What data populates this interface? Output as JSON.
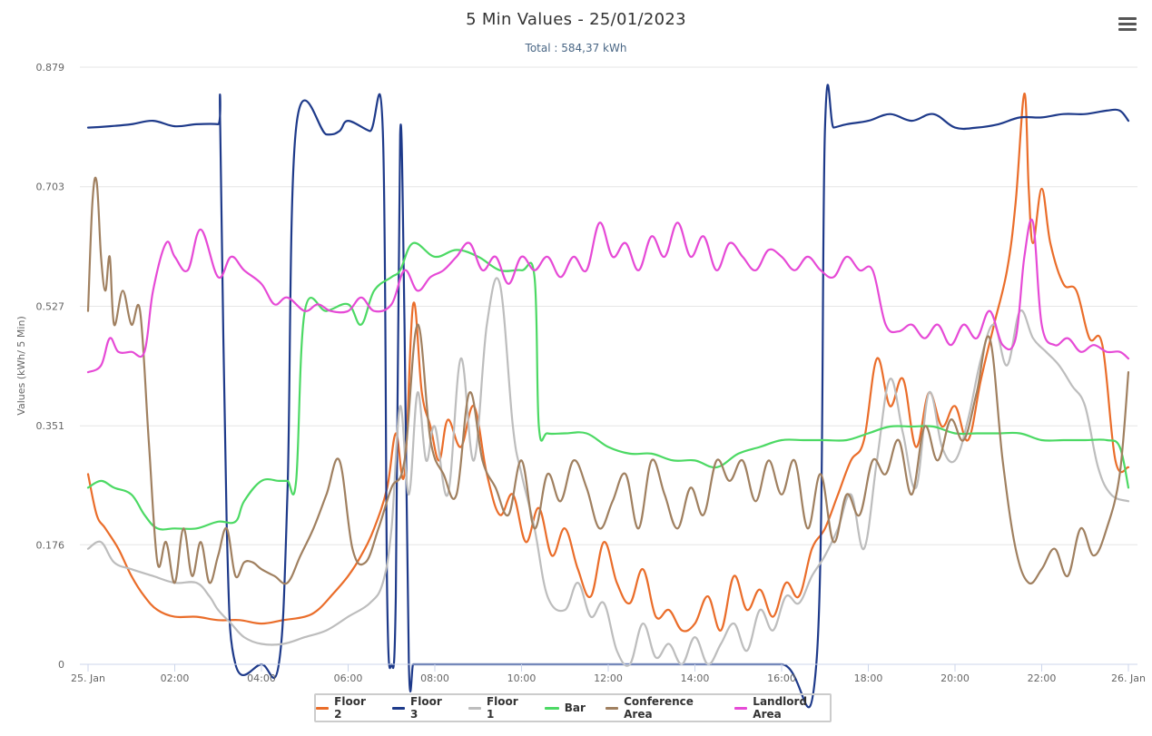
{
  "menu": {
    "icon": "hamburger-menu-icon"
  },
  "chart_data": {
    "type": "line",
    "title": "5 Min Values - 25/01/2023",
    "subtitle": "Total : 584,37 kWh",
    "xlabel": "",
    "ylabel": "Values (kWh/ 5 Min)",
    "x_unit": "hours since 25 Jan 00:00",
    "xlim": [
      0,
      24
    ],
    "ylim": [
      0,
      0.879
    ],
    "y_ticks": [
      "0",
      "0.176",
      "0.351",
      "0.527",
      "0.703",
      "0.879"
    ],
    "y_tick_values": [
      0,
      0.176,
      0.351,
      0.527,
      0.703,
      0.879
    ],
    "x_ticks": [
      "25. Jan",
      "02:00",
      "04:00",
      "06:00",
      "08:00",
      "10:00",
      "12:00",
      "14:00",
      "16:00",
      "18:00",
      "20:00",
      "22:00",
      "26. Jan"
    ],
    "x_tick_values": [
      0,
      2,
      4,
      6,
      8,
      10,
      12,
      14,
      16,
      18,
      20,
      22,
      24
    ],
    "grid": true,
    "legend": "bottom-center",
    "series": [
      {
        "name": "Floor 2",
        "color": "#ea6d2a",
        "x": [
          0,
          0.2,
          0.4,
          0.7,
          1.0,
          1.3,
          1.6,
          2.0,
          2.5,
          3.0,
          3.5,
          4.0,
          4.5,
          5.0,
          5.3,
          5.6,
          6.0,
          6.3,
          6.6,
          6.9,
          7.1,
          7.3,
          7.5,
          7.7,
          7.9,
          8.1,
          8.3,
          8.6,
          8.9,
          9.2,
          9.5,
          9.8,
          10.1,
          10.4,
          10.7,
          11.0,
          11.3,
          11.6,
          11.9,
          12.2,
          12.5,
          12.8,
          13.1,
          13.4,
          13.7,
          14.0,
          14.3,
          14.6,
          14.9,
          15.2,
          15.5,
          15.8,
          16.1,
          16.4,
          16.7,
          17.0,
          17.3,
          17.6,
          17.9,
          18.2,
          18.5,
          18.8,
          19.1,
          19.4,
          19.7,
          20.0,
          20.3,
          20.6,
          20.9,
          21.2,
          21.4,
          21.6,
          21.7,
          21.8,
          22.0,
          22.2,
          22.5,
          22.8,
          23.1,
          23.4,
          23.7,
          24.0
        ],
        "values": [
          0.28,
          0.22,
          0.2,
          0.17,
          0.13,
          0.1,
          0.08,
          0.07,
          0.07,
          0.065,
          0.065,
          0.06,
          0.065,
          0.07,
          0.08,
          0.1,
          0.13,
          0.16,
          0.2,
          0.26,
          0.34,
          0.28,
          0.53,
          0.4,
          0.35,
          0.3,
          0.36,
          0.32,
          0.38,
          0.28,
          0.22,
          0.25,
          0.18,
          0.23,
          0.16,
          0.2,
          0.14,
          0.1,
          0.18,
          0.12,
          0.09,
          0.14,
          0.07,
          0.08,
          0.05,
          0.06,
          0.1,
          0.05,
          0.13,
          0.08,
          0.11,
          0.07,
          0.12,
          0.1,
          0.17,
          0.2,
          0.25,
          0.3,
          0.33,
          0.45,
          0.38,
          0.42,
          0.32,
          0.4,
          0.35,
          0.38,
          0.33,
          0.42,
          0.5,
          0.58,
          0.68,
          0.84,
          0.7,
          0.62,
          0.7,
          0.62,
          0.56,
          0.55,
          0.48,
          0.47,
          0.3,
          0.29
        ]
      },
      {
        "name": "Floor 3",
        "color": "#1e3a8a",
        "x": [
          0,
          0.5,
          1.0,
          1.5,
          2.0,
          2.5,
          3.0,
          3.05,
          3.2,
          3.4,
          4.0,
          4.4,
          4.6,
          4.8,
          5.5,
          5.8,
          6.0,
          6.5,
          6.8,
          6.9,
          7.0,
          7.1,
          7.2,
          7.3,
          7.4,
          7.5,
          7.6,
          8.0,
          10.0,
          12.0,
          14.0,
          16.0,
          16.8,
          17.0,
          17.2,
          17.5,
          18.0,
          18.5,
          19.0,
          19.5,
          20.0,
          20.5,
          21.0,
          21.5,
          22.0,
          22.5,
          23.0,
          23.5,
          23.8,
          24.0
        ],
        "values": [
          0.79,
          0.792,
          0.795,
          0.8,
          0.792,
          0.795,
          0.795,
          0.79,
          0.2,
          0.0,
          0.0,
          0.0,
          0.25,
          0.79,
          0.78,
          0.785,
          0.8,
          0.785,
          0.785,
          0.1,
          0.0,
          0.1,
          0.78,
          0.5,
          0.0,
          0.0,
          0.0,
          0.0,
          0.0,
          0.0,
          0.0,
          0.0,
          0.0,
          0.79,
          0.79,
          0.795,
          0.8,
          0.81,
          0.8,
          0.81,
          0.79,
          0.79,
          0.795,
          0.805,
          0.805,
          0.81,
          0.81,
          0.815,
          0.815,
          0.8
        ]
      },
      {
        "name": "Floor 1",
        "color": "#bdbdbd",
        "x": [
          0,
          0.3,
          0.6,
          1.0,
          1.5,
          2.0,
          2.5,
          2.8,
          3.0,
          3.3,
          3.6,
          4.0,
          4.5,
          5.0,
          5.5,
          6.0,
          6.5,
          6.8,
          7.0,
          7.2,
          7.4,
          7.6,
          7.8,
          8.0,
          8.3,
          8.6,
          8.9,
          9.2,
          9.5,
          9.8,
          10.0,
          10.3,
          10.6,
          11.0,
          11.3,
          11.6,
          11.9,
          12.2,
          12.5,
          12.8,
          13.1,
          13.4,
          13.7,
          14.0,
          14.3,
          14.6,
          14.9,
          15.2,
          15.5,
          15.8,
          16.1,
          16.4,
          16.7,
          17.0,
          17.3,
          17.6,
          17.9,
          18.2,
          18.5,
          18.8,
          19.1,
          19.4,
          19.7,
          20.0,
          20.3,
          20.6,
          20.9,
          21.2,
          21.5,
          21.8,
          22.1,
          22.4,
          22.7,
          23.0,
          23.3,
          23.6,
          24.0
        ],
        "values": [
          0.17,
          0.18,
          0.15,
          0.14,
          0.13,
          0.12,
          0.12,
          0.1,
          0.08,
          0.06,
          0.04,
          0.03,
          0.03,
          0.04,
          0.05,
          0.07,
          0.09,
          0.12,
          0.2,
          0.38,
          0.25,
          0.4,
          0.3,
          0.35,
          0.25,
          0.45,
          0.3,
          0.5,
          0.56,
          0.35,
          0.28,
          0.2,
          0.1,
          0.08,
          0.12,
          0.07,
          0.09,
          0.02,
          0.0,
          0.06,
          0.01,
          0.03,
          0.0,
          0.04,
          0.0,
          0.03,
          0.06,
          0.02,
          0.08,
          0.05,
          0.1,
          0.09,
          0.13,
          0.16,
          0.2,
          0.25,
          0.17,
          0.3,
          0.42,
          0.34,
          0.26,
          0.4,
          0.32,
          0.3,
          0.36,
          0.45,
          0.5,
          0.44,
          0.52,
          0.48,
          0.46,
          0.44,
          0.41,
          0.38,
          0.29,
          0.25,
          0.24
        ]
      },
      {
        "name": "Bar",
        "color": "#4cd964",
        "x": [
          0,
          0.3,
          0.6,
          1.0,
          1.3,
          1.6,
          2.0,
          2.5,
          3.0,
          3.4,
          3.6,
          4.0,
          4.4,
          4.6,
          4.8,
          5.0,
          5.5,
          6.0,
          6.3,
          6.6,
          7.0,
          7.2,
          7.5,
          8.0,
          8.5,
          9.0,
          9.5,
          10.0,
          10.3,
          10.4,
          10.6,
          11.0,
          11.5,
          12.0,
          12.5,
          13.0,
          13.5,
          14.0,
          14.5,
          15.0,
          15.5,
          16.0,
          16.5,
          17.0,
          17.5,
          18.0,
          18.5,
          19.0,
          19.5,
          20.0,
          20.5,
          21.0,
          21.5,
          22.0,
          22.5,
          23.0,
          23.5,
          23.8,
          24.0
        ],
        "values": [
          0.26,
          0.27,
          0.26,
          0.25,
          0.22,
          0.2,
          0.2,
          0.2,
          0.21,
          0.21,
          0.24,
          0.27,
          0.27,
          0.27,
          0.27,
          0.52,
          0.52,
          0.53,
          0.5,
          0.55,
          0.57,
          0.58,
          0.62,
          0.6,
          0.61,
          0.6,
          0.58,
          0.58,
          0.57,
          0.35,
          0.34,
          0.34,
          0.34,
          0.32,
          0.31,
          0.31,
          0.3,
          0.3,
          0.29,
          0.31,
          0.32,
          0.33,
          0.33,
          0.33,
          0.33,
          0.34,
          0.35,
          0.35,
          0.35,
          0.34,
          0.34,
          0.34,
          0.34,
          0.33,
          0.33,
          0.33,
          0.33,
          0.32,
          0.26
        ]
      },
      {
        "name": "Conference Area",
        "color": "#a08060",
        "x": [
          0,
          0.1,
          0.2,
          0.3,
          0.4,
          0.5,
          0.6,
          0.8,
          1.0,
          1.2,
          1.4,
          1.6,
          1.8,
          2.0,
          2.2,
          2.4,
          2.6,
          2.8,
          3.0,
          3.2,
          3.4,
          3.6,
          3.8,
          4.0,
          4.3,
          4.6,
          4.9,
          5.2,
          5.5,
          5.8,
          6.1,
          6.4,
          6.7,
          7.0,
          7.3,
          7.6,
          7.9,
          8.2,
          8.5,
          8.8,
          9.1,
          9.4,
          9.7,
          10.0,
          10.3,
          10.6,
          10.9,
          11.2,
          11.5,
          11.8,
          12.1,
          12.4,
          12.7,
          13.0,
          13.3,
          13.6,
          13.9,
          14.2,
          14.5,
          14.8,
          15.1,
          15.4,
          15.7,
          16.0,
          16.3,
          16.6,
          16.9,
          17.2,
          17.5,
          17.8,
          18.1,
          18.4,
          18.7,
          19.0,
          19.3,
          19.6,
          19.9,
          20.2,
          20.5,
          20.8,
          21.1,
          21.4,
          21.7,
          22.0,
          22.3,
          22.6,
          22.9,
          23.2,
          23.5,
          23.8,
          24.0
        ],
        "values": [
          0.52,
          0.68,
          0.71,
          0.6,
          0.55,
          0.6,
          0.5,
          0.55,
          0.5,
          0.52,
          0.33,
          0.15,
          0.18,
          0.12,
          0.2,
          0.13,
          0.18,
          0.12,
          0.16,
          0.2,
          0.13,
          0.15,
          0.15,
          0.14,
          0.13,
          0.12,
          0.16,
          0.2,
          0.25,
          0.3,
          0.17,
          0.15,
          0.2,
          0.26,
          0.3,
          0.5,
          0.33,
          0.28,
          0.25,
          0.4,
          0.3,
          0.26,
          0.22,
          0.3,
          0.2,
          0.28,
          0.24,
          0.3,
          0.26,
          0.2,
          0.24,
          0.28,
          0.2,
          0.3,
          0.25,
          0.2,
          0.26,
          0.22,
          0.3,
          0.27,
          0.3,
          0.24,
          0.3,
          0.25,
          0.3,
          0.2,
          0.28,
          0.18,
          0.25,
          0.22,
          0.3,
          0.28,
          0.33,
          0.25,
          0.35,
          0.3,
          0.36,
          0.33,
          0.4,
          0.48,
          0.3,
          0.17,
          0.12,
          0.14,
          0.17,
          0.13,
          0.2,
          0.16,
          0.2,
          0.28,
          0.43
        ]
      },
      {
        "name": "Landlord Area",
        "color": "#e64ad6",
        "x": [
          0,
          0.3,
          0.5,
          0.7,
          1.0,
          1.3,
          1.5,
          1.8,
          2.0,
          2.3,
          2.6,
          3.0,
          3.3,
          3.6,
          4.0,
          4.3,
          4.6,
          5.0,
          5.3,
          5.6,
          6.0,
          6.3,
          6.6,
          7.0,
          7.3,
          7.6,
          7.9,
          8.2,
          8.5,
          8.8,
          9.1,
          9.4,
          9.7,
          10.0,
          10.3,
          10.6,
          10.9,
          11.2,
          11.5,
          11.8,
          12.1,
          12.4,
          12.7,
          13.0,
          13.3,
          13.6,
          13.9,
          14.2,
          14.5,
          14.8,
          15.1,
          15.4,
          15.7,
          16.0,
          16.3,
          16.6,
          16.9,
          17.2,
          17.5,
          17.8,
          18.1,
          18.4,
          18.7,
          19.0,
          19.3,
          19.6,
          19.9,
          20.2,
          20.5,
          20.8,
          21.1,
          21.4,
          21.6,
          21.8,
          22.0,
          22.3,
          22.6,
          22.9,
          23.2,
          23.5,
          23.8,
          24.0
        ],
        "values": [
          0.43,
          0.44,
          0.48,
          0.46,
          0.46,
          0.46,
          0.55,
          0.62,
          0.6,
          0.58,
          0.64,
          0.57,
          0.6,
          0.58,
          0.56,
          0.53,
          0.54,
          0.52,
          0.53,
          0.52,
          0.52,
          0.54,
          0.52,
          0.53,
          0.58,
          0.55,
          0.57,
          0.58,
          0.6,
          0.62,
          0.58,
          0.6,
          0.56,
          0.6,
          0.58,
          0.6,
          0.57,
          0.6,
          0.58,
          0.65,
          0.6,
          0.62,
          0.58,
          0.63,
          0.6,
          0.65,
          0.6,
          0.63,
          0.58,
          0.62,
          0.6,
          0.58,
          0.61,
          0.6,
          0.58,
          0.6,
          0.58,
          0.57,
          0.6,
          0.58,
          0.58,
          0.5,
          0.49,
          0.5,
          0.48,
          0.5,
          0.47,
          0.5,
          0.48,
          0.52,
          0.47,
          0.48,
          0.6,
          0.65,
          0.5,
          0.47,
          0.48,
          0.46,
          0.47,
          0.46,
          0.46,
          0.45
        ]
      }
    ]
  }
}
